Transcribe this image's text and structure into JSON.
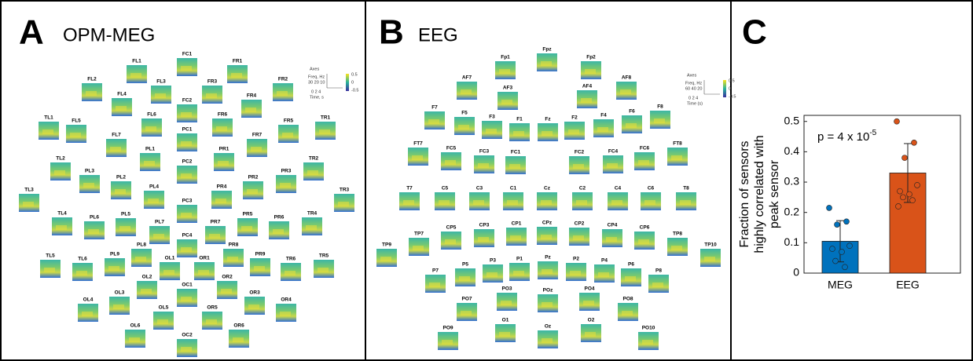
{
  "panels": [
    {
      "letter": "A",
      "title": "OPM-MEG",
      "legend": {
        "title": "Axes",
        "ylabel": "Freq, Hz",
        "yticks": "30 20 10",
        "xlabel": "Time, s",
        "xticks": "0  2  4",
        "cbar_top": "0.5",
        "cbar_mid": "0",
        "cbar_bottom": "-0.5"
      },
      "sensors": [
        "FC1",
        "FL1",
        "FR1",
        "FL2",
        "FL3",
        "FR3",
        "FR2",
        "FL4",
        "FC2",
        "FR4",
        "TL1",
        "FL5",
        "FL6",
        "FR6",
        "FR5",
        "TR1",
        "FL7",
        "PC1",
        "FR7",
        "PL1",
        "PR1",
        "TL2",
        "PL3",
        "PC2",
        "TR2",
        "PL2",
        "PR2",
        "PR3",
        "TL3",
        "PL4",
        "PR4",
        "TR3",
        "PC3",
        "TL4",
        "PL6",
        "PL5",
        "PL7",
        "PR7",
        "PR5",
        "PR6",
        "TR4",
        "PC4",
        "PL8",
        "PR8",
        "TL5",
        "TL6",
        "PL9",
        "OL1",
        "OR1",
        "PR9",
        "TR6",
        "TR5",
        "OL2",
        "OR2",
        "OC1",
        "OL4",
        "OL3",
        "OR3",
        "OR4",
        "OL5",
        "OR5",
        "OL6",
        "OC2",
        "OR6"
      ]
    },
    {
      "letter": "B",
      "title": "EEG",
      "legend": {
        "title": "Axes",
        "ylabel": "Freq, Hz",
        "yticks": "60 40 20",
        "xlabel": "Time (s)",
        "xticks": "0  2  4",
        "cbar_top": "0.5",
        "cbar_mid": "0",
        "cbar_bottom": "-0.5"
      },
      "sensors": [
        "Fpz",
        "Fp1",
        "Fp2",
        "AF7",
        "AF3",
        "AF4",
        "AF8",
        "F7",
        "F5",
        "F3",
        "F1",
        "Fz",
        "F2",
        "F4",
        "F6",
        "F8",
        "FT7",
        "FC5",
        "FC3",
        "FC1",
        "FC2",
        "FC4",
        "FC6",
        "FT8",
        "T7",
        "C5",
        "C3",
        "C1",
        "Cz",
        "C2",
        "C4",
        "C6",
        "T8",
        "TP9",
        "TP7",
        "CP5",
        "CP3",
        "CP1",
        "CPz",
        "CP2",
        "CP4",
        "CP6",
        "TP8",
        "TP10",
        "P7",
        "P5",
        "P3",
        "P1",
        "Pz",
        "P2",
        "P4",
        "P6",
        "P8",
        "PO7",
        "PO3",
        "POz",
        "PO4",
        "PO8",
        "PO9",
        "O1",
        "Oz",
        "O2",
        "PO10"
      ]
    },
    {
      "letter": "C"
    }
  ],
  "chart_data": {
    "type": "bar",
    "ylabel": [
      "Fraction of sensors",
      "highly correlated with",
      "peak sensor"
    ],
    "annotation": {
      "text": "p = 4 x 10",
      "exponent": "-5"
    },
    "categories": [
      "MEG",
      "EEG"
    ],
    "values": [
      0.105,
      0.33
    ],
    "errors": [
      0.068,
      0.097
    ],
    "colors": [
      "#0072bd",
      "#d95319"
    ],
    "points": [
      [
        0.215,
        0.17,
        0.16,
        0.09,
        0.08,
        0.07,
        0.04,
        0.02
      ],
      [
        0.5,
        0.43,
        0.38,
        0.29,
        0.27,
        0.26,
        0.25,
        0.24,
        0.22
      ]
    ],
    "ylim": [
      0,
      0.52
    ],
    "yticks": [
      0,
      0.1,
      0.2,
      0.3,
      0.4,
      0.5
    ]
  }
}
